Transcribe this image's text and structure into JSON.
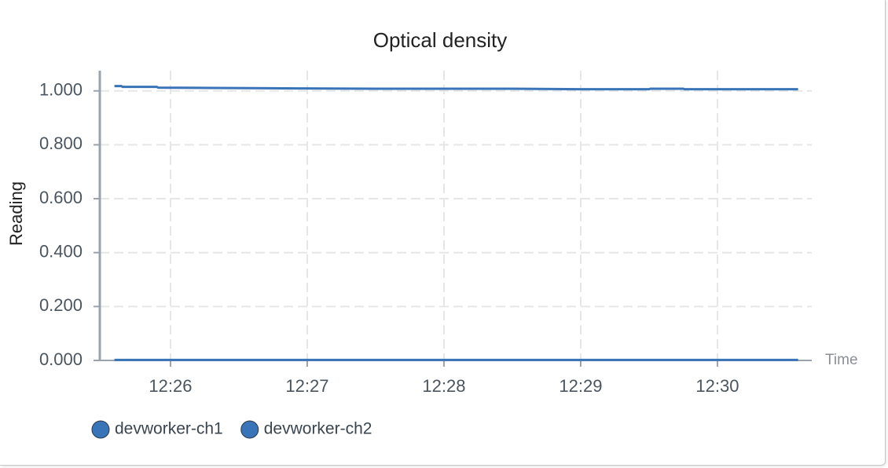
{
  "chart_data": {
    "type": "line",
    "title": "Optical density",
    "x_label": "Time",
    "y_label": "Reading",
    "xlim": [
      745.483,
      750.69
    ],
    "ylim": [
      0,
      1.075
    ],
    "xticks": [
      {
        "value": 746,
        "label": "12:26"
      },
      {
        "value": 747,
        "label": "12:27"
      },
      {
        "value": 748,
        "label": "12:28"
      },
      {
        "value": 749,
        "label": "12:29"
      },
      {
        "value": 750,
        "label": "12:30"
      }
    ],
    "yticks": [
      {
        "value": 0,
        "label": "0.000"
      },
      {
        "value": 0.2,
        "label": "0.200"
      },
      {
        "value": 0.4,
        "label": "0.400"
      },
      {
        "value": 0.6,
        "label": "0.600"
      },
      {
        "value": 0.8,
        "label": "0.800"
      },
      {
        "value": 1,
        "label": "1.000"
      }
    ],
    "grid": true,
    "series": [
      {
        "name": "devworker-ch1",
        "color": "#3a74b8",
        "x": [
          745.59,
          745.64,
          745.65,
          745.9,
          745.91,
          746.3,
          746.6,
          747.0,
          747.5,
          748.0,
          748.5,
          749.0,
          749.5,
          749.51,
          749.75,
          749.76,
          750.2,
          750.59
        ],
        "values": [
          1.018,
          1.018,
          1.015,
          1.015,
          1.012,
          1.011,
          1.01,
          1.009,
          1.008,
          1.008,
          1.008,
          1.006,
          1.006,
          1.008,
          1.008,
          1.006,
          1.006,
          1.006
        ]
      },
      {
        "name": "devworker-ch2",
        "color": "#3a74b8",
        "x": [
          745.59,
          746.5,
          747.5,
          748.5,
          749.5,
          750.59
        ],
        "values": [
          0.002,
          0.002,
          0.002,
          0.002,
          0.002,
          0.002
        ]
      }
    ]
  }
}
